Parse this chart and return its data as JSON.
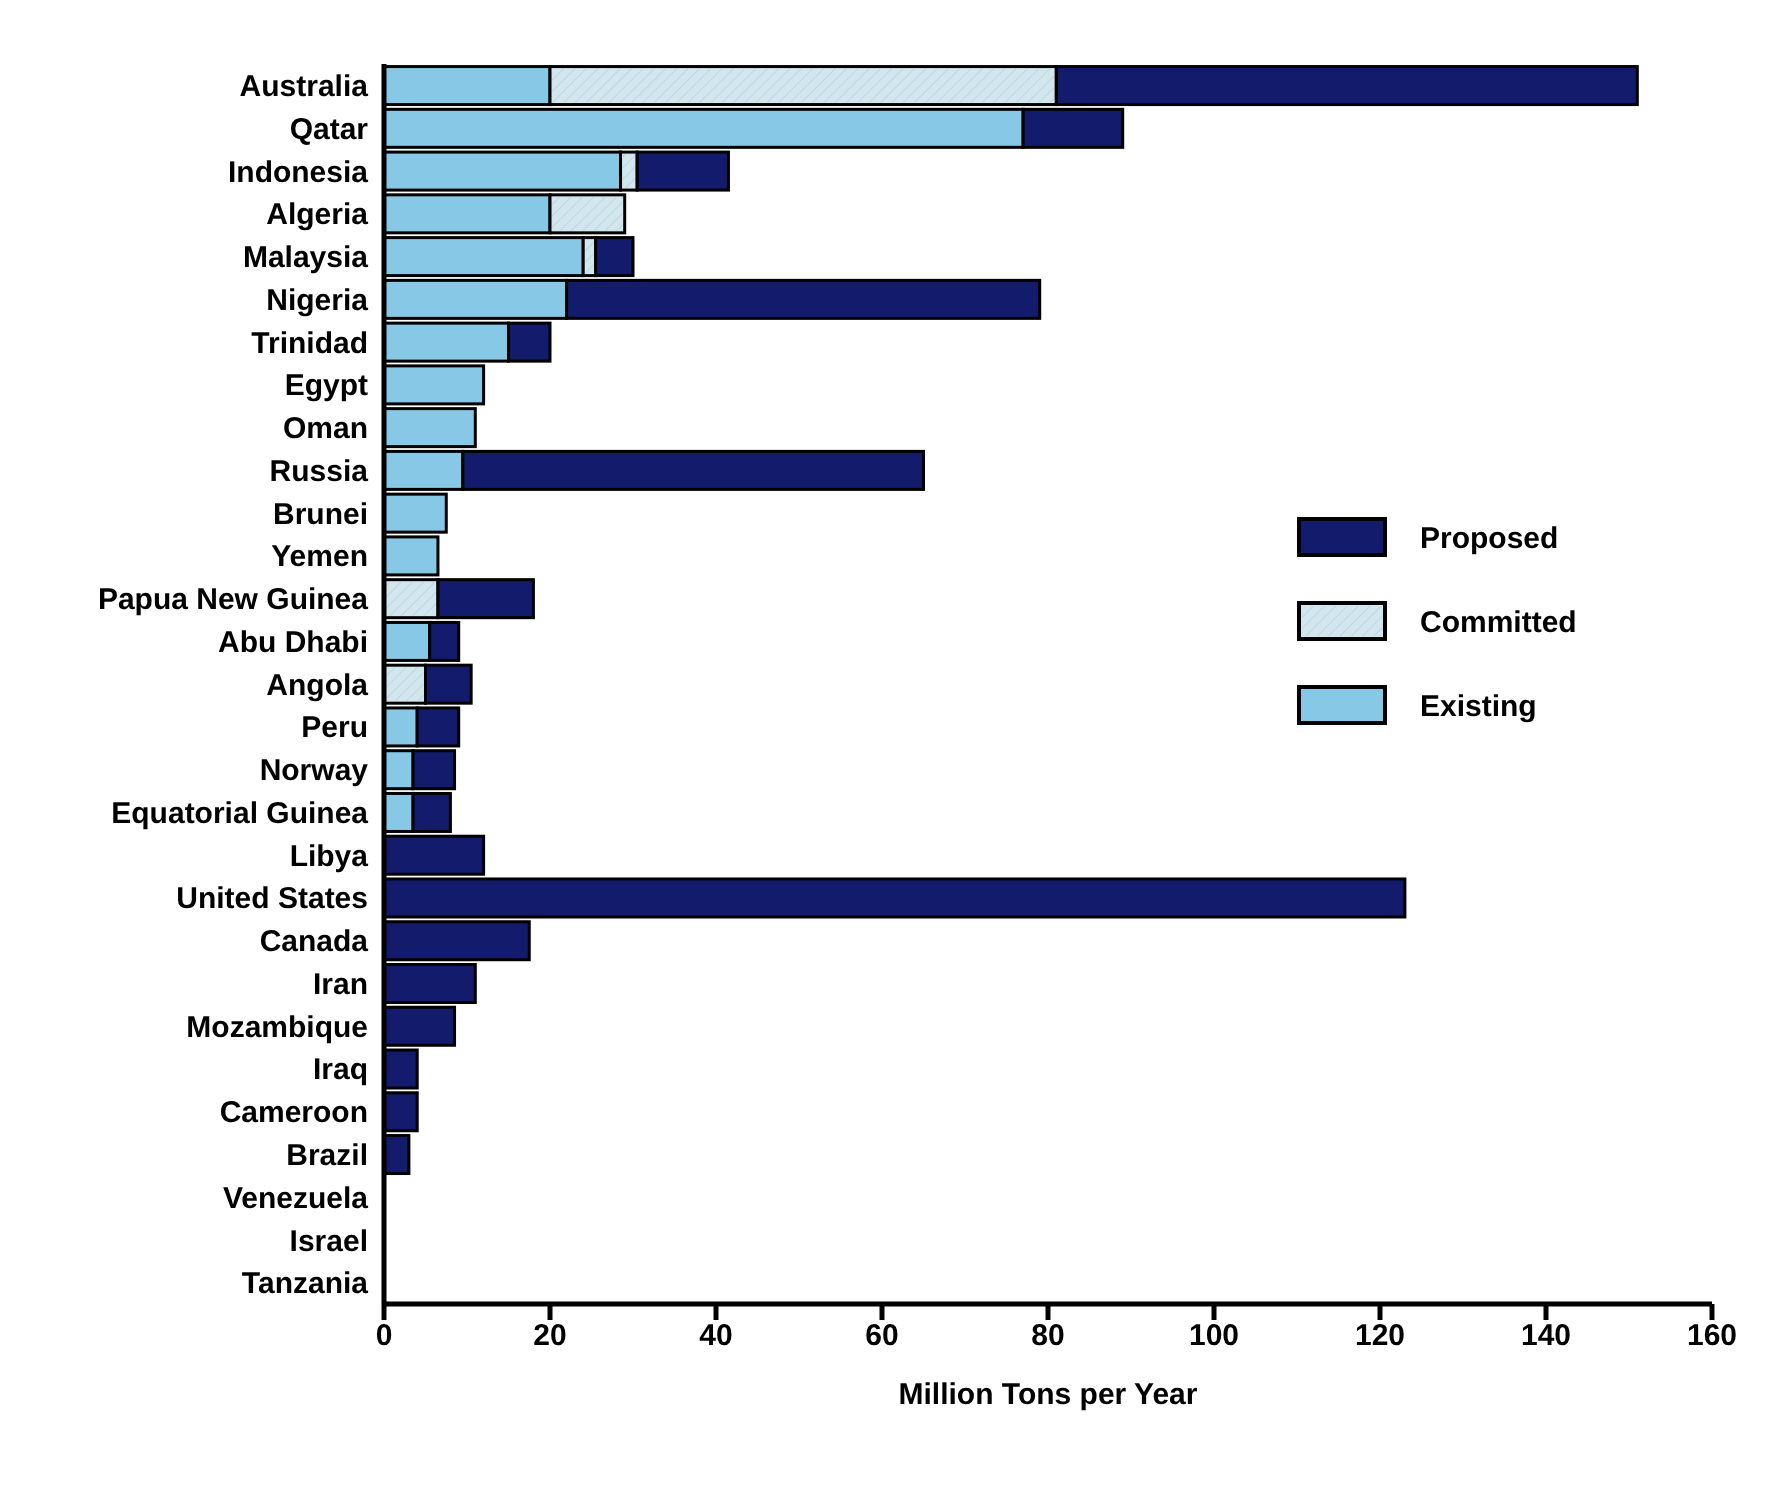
{
  "chart_data": {
    "type": "bar",
    "orientation": "horizontal",
    "stacked": true,
    "xlabel": "Million Tons per Year",
    "categories": [
      "Australia",
      "Qatar",
      "Indonesia",
      "Algeria",
      "Malaysia",
      "Nigeria",
      "Trinidad",
      "Egypt",
      "Oman",
      "Russia",
      "Brunei",
      "Yemen",
      "Papua New Guinea",
      "Abu Dhabi",
      "Angola",
      "Peru",
      "Norway",
      "Equatorial Guinea",
      "Libya",
      "United States",
      "Canada",
      "Iran",
      "Mozambique",
      "Iraq",
      "Cameroon",
      "Brazil",
      "Venezuela",
      "Israel",
      "Tanzania"
    ],
    "series": [
      {
        "name": "Existing",
        "color": "#87c8e6",
        "values": [
          20,
          77,
          28.5,
          20,
          24,
          22,
          15,
          12,
          11,
          9.5,
          7.5,
          6.5,
          null,
          5.5,
          null,
          4,
          3.5,
          3.5,
          null,
          null,
          null,
          null,
          null,
          null,
          null,
          null,
          null,
          null,
          null
        ]
      },
      {
        "name": "Committed",
        "color": "#d2e6ee",
        "values": [
          61,
          null,
          2,
          9,
          1.5,
          null,
          null,
          null,
          null,
          null,
          null,
          null,
          6.5,
          null,
          5,
          null,
          null,
          null,
          null,
          null,
          null,
          null,
          null,
          null,
          null,
          null,
          null,
          null,
          null
        ]
      },
      {
        "name": "Proposed",
        "color": "#131b6c",
        "values": [
          70,
          12,
          11,
          null,
          4.5,
          57,
          5,
          null,
          null,
          55.5,
          null,
          null,
          11.5,
          3.5,
          5.5,
          5,
          5,
          4.5,
          12,
          123,
          17.5,
          11,
          8.5,
          4,
          4,
          3,
          null,
          null,
          null
        ]
      }
    ],
    "xlim": [
      0,
      160
    ],
    "xticks": [
      0,
      20,
      40,
      60,
      80,
      100,
      120,
      140,
      160
    ],
    "grid": false,
    "legend": "right"
  }
}
